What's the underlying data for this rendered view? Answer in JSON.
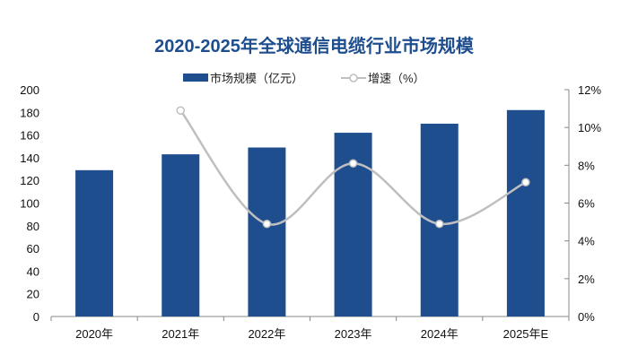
{
  "chart_data": {
    "type": "bar",
    "title": "2020-2025年全球通信电缆行业市场规模",
    "categories": [
      "2020年",
      "2021年",
      "2022年",
      "2023年",
      "2024年",
      "2025年E"
    ],
    "series": [
      {
        "name": "市场规模（亿元）",
        "type": "bar",
        "axis": "left",
        "color": "#1f4e8f",
        "values": [
          129,
          143,
          149,
          162,
          170,
          182
        ]
      },
      {
        "name": "增速（%）",
        "type": "line",
        "axis": "right",
        "color": "#bfbfbf",
        "smooth": true,
        "values": [
          null,
          10.9,
          4.9,
          8.1,
          4.9,
          7.1
        ]
      }
    ],
    "ylim": [
      0,
      200
    ],
    "yticks": [
      "0",
      "20",
      "40",
      "60",
      "80",
      "100",
      "120",
      "140",
      "160",
      "180",
      "200"
    ],
    "y2lim": [
      0,
      12
    ],
    "y2ticks": [
      "0%",
      "2%",
      "4%",
      "6%",
      "8%",
      "10%",
      "12%"
    ],
    "grid": false,
    "legend": "top",
    "title_color": "#1f4e8f"
  }
}
